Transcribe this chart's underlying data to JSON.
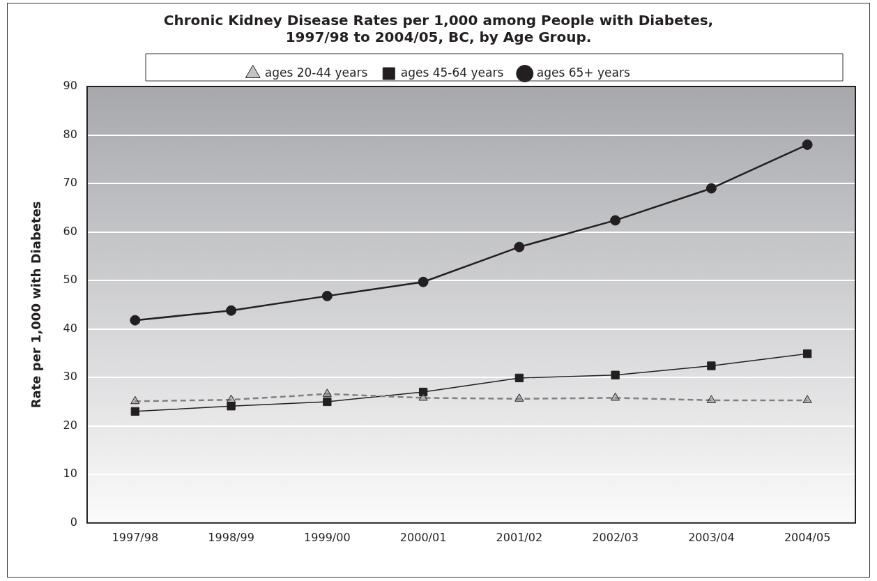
{
  "chart_data": {
    "type": "line",
    "title": [
      "Chronic Kidney Disease Rates per 1,000 among People with Diabetes,",
      "1997/98 to 2004/05, BC, by Age Group."
    ],
    "ylabel": "Rate per 1,000 with Diabetes",
    "categories": [
      "1997/98",
      "1998/99",
      "1999/00",
      "2000/01",
      "2001/02",
      "2002/03",
      "2003/04",
      "2004/05"
    ],
    "series": [
      {
        "name": "ages 20-44 years",
        "color": "#808080",
        "marker": "triangle",
        "line_style": "dashed",
        "values": [
          25.1,
          25.4,
          26.6,
          25.8,
          25.6,
          25.8,
          25.3,
          25.3
        ]
      },
      {
        "name": "ages 45-64 years",
        "color": "#231f20",
        "marker": "square",
        "line_style": "solid",
        "values": [
          23.0,
          24.1,
          25.0,
          27.0,
          29.9,
          30.5,
          32.4,
          34.9
        ]
      },
      {
        "name": "ages 65+ years",
        "color": "#231f20",
        "marker": "circle",
        "line_style": "solid",
        "values": [
          41.8,
          43.8,
          46.8,
          49.7,
          56.9,
          62.4,
          69.0,
          78.0
        ]
      }
    ],
    "ylim": [
      0,
      90
    ],
    "yticks": [
      0,
      10,
      20,
      30,
      40,
      50,
      60,
      70,
      80,
      90
    ],
    "grid": "y",
    "legend": "top"
  }
}
